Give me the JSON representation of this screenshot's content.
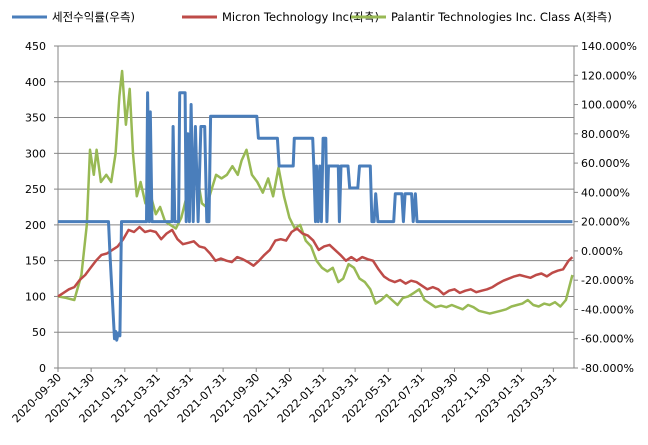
{
  "chart_data": {
    "type": "line",
    "legend_placement": "top",
    "grid": "horizontal",
    "colors": {
      "return_series": "#4a7ebb",
      "micron_series": "#be4b48",
      "palantir_series": "#98b954",
      "gridline": "#868686",
      "axis": "#868686"
    },
    "x_tick_labels": [
      "2020-09-30",
      "2020-11-30",
      "2021-01-31",
      "2021-03-31",
      "2021-05-31",
      "2021-07-31",
      "2021-09-30",
      "2021-11-30",
      "2022-01-31",
      "2022-03-31",
      "2022-05-31",
      "2022-07-31",
      "2022-09-30",
      "2022-11-30",
      "2023-01-31",
      "2023-03-31"
    ],
    "y_left": {
      "ticks": [
        "0",
        "50",
        "100",
        "150",
        "200",
        "250",
        "300",
        "350",
        "400",
        "450"
      ],
      "range": [
        0,
        450
      ]
    },
    "y_right": {
      "ticks": [
        "-80.000%",
        "-60.000%",
        "-40.000%",
        "-20.000%",
        "0.000%",
        "20.000%",
        "40.000%",
        "60.000%",
        "80.000%",
        "100.000%",
        "120.000%",
        "140.000%"
      ],
      "range": [
        -80,
        140
      ]
    },
    "series": [
      {
        "key": "return_series",
        "name": "세전수익률(우측)",
        "axis": "right",
        "points": [
          [
            "2020-09-30",
            20
          ],
          [
            "2021-01-01",
            20
          ],
          [
            "2021-01-04",
            -4
          ],
          [
            "2021-01-12",
            -60
          ],
          [
            "2021-01-14",
            -55
          ],
          [
            "2021-01-16",
            -61
          ],
          [
            "2021-01-19",
            -56
          ],
          [
            "2021-01-22",
            -58
          ],
          [
            "2021-01-25",
            20
          ],
          [
            "2021-03-12",
            20
          ],
          [
            "2021-03-14",
            108
          ],
          [
            "2021-03-17",
            20
          ],
          [
            "2021-03-19",
            95
          ],
          [
            "2021-03-22",
            20
          ],
          [
            "2021-04-28",
            20
          ],
          [
            "2021-04-30",
            85
          ],
          [
            "2021-05-03",
            20
          ],
          [
            "2021-05-10",
            20
          ],
          [
            "2021-05-12",
            108
          ],
          [
            "2021-05-22",
            108
          ],
          [
            "2021-05-24",
            20
          ],
          [
            "2021-05-27",
            80
          ],
          [
            "2021-05-30",
            20
          ],
          [
            "2021-06-02",
            100
          ],
          [
            "2021-06-06",
            20
          ],
          [
            "2021-06-10",
            85
          ],
          [
            "2021-06-15",
            20
          ],
          [
            "2021-06-20",
            85
          ],
          [
            "2021-06-27",
            85
          ],
          [
            "2021-07-01",
            20
          ],
          [
            "2021-07-05",
            20
          ],
          [
            "2021-07-08",
            92
          ],
          [
            "2021-10-01",
            92
          ],
          [
            "2021-10-04",
            77
          ],
          [
            "2021-11-08",
            77
          ],
          [
            "2021-11-11",
            58
          ],
          [
            "2021-12-07",
            58
          ],
          [
            "2021-12-09",
            77
          ],
          [
            "2022-01-12",
            77
          ],
          [
            "2022-01-14",
            58
          ],
          [
            "2022-01-17",
            20
          ],
          [
            "2022-01-19",
            58
          ],
          [
            "2022-01-22",
            20
          ],
          [
            "2022-01-25",
            58
          ],
          [
            "2022-01-28",
            20
          ],
          [
            "2022-01-31",
            77
          ],
          [
            "2022-02-05",
            77
          ],
          [
            "2022-02-07",
            20
          ],
          [
            "2022-02-10",
            58
          ],
          [
            "2022-02-28",
            58
          ],
          [
            "2022-03-02",
            20
          ],
          [
            "2022-03-05",
            58
          ],
          [
            "2022-03-18",
            58
          ],
          [
            "2022-03-21",
            43
          ],
          [
            "2022-04-05",
            43
          ],
          [
            "2022-04-08",
            58
          ],
          [
            "2022-04-28",
            58
          ],
          [
            "2022-05-01",
            20
          ],
          [
            "2022-05-05",
            20
          ],
          [
            "2022-05-08",
            39
          ],
          [
            "2022-05-12",
            20
          ],
          [
            "2022-06-10",
            20
          ],
          [
            "2022-06-13",
            39
          ],
          [
            "2022-06-25",
            39
          ],
          [
            "2022-06-28",
            20
          ],
          [
            "2022-07-01",
            39
          ],
          [
            "2022-07-13",
            39
          ],
          [
            "2022-07-16",
            20
          ],
          [
            "2022-07-20",
            39
          ],
          [
            "2022-07-23",
            20
          ],
          [
            "2023-05-05",
            20
          ]
        ]
      },
      {
        "key": "micron_series",
        "name": "Micron Technology Inc(좌측)",
        "axis": "left",
        "points": [
          [
            "2020-09-30",
            100
          ],
          [
            "2020-10-10",
            105
          ],
          [
            "2020-10-20",
            110
          ],
          [
            "2020-10-30",
            113
          ],
          [
            "2020-11-09",
            123
          ],
          [
            "2020-11-19",
            130
          ],
          [
            "2020-11-29",
            140
          ],
          [
            "2020-12-09",
            150
          ],
          [
            "2020-12-19",
            158
          ],
          [
            "2020-12-29",
            160
          ],
          [
            "2021-01-08",
            165
          ],
          [
            "2021-01-18",
            170
          ],
          [
            "2021-01-28",
            180
          ],
          [
            "2021-02-07",
            193
          ],
          [
            "2021-02-17",
            190
          ],
          [
            "2021-02-27",
            197
          ],
          [
            "2021-03-09",
            190
          ],
          [
            "2021-03-19",
            192
          ],
          [
            "2021-03-29",
            190
          ],
          [
            "2021-04-08",
            180
          ],
          [
            "2021-04-18",
            188
          ],
          [
            "2021-04-28",
            193
          ],
          [
            "2021-05-08",
            180
          ],
          [
            "2021-05-18",
            173
          ],
          [
            "2021-05-28",
            175
          ],
          [
            "2021-06-07",
            177
          ],
          [
            "2021-06-17",
            170
          ],
          [
            "2021-06-27",
            168
          ],
          [
            "2021-07-07",
            160
          ],
          [
            "2021-07-17",
            150
          ],
          [
            "2021-07-27",
            153
          ],
          [
            "2021-08-06",
            150
          ],
          [
            "2021-08-16",
            148
          ],
          [
            "2021-08-26",
            155
          ],
          [
            "2021-09-05",
            152
          ],
          [
            "2021-09-15",
            148
          ],
          [
            "2021-09-25",
            143
          ],
          [
            "2021-10-05",
            150
          ],
          [
            "2021-10-15",
            158
          ],
          [
            "2021-10-25",
            165
          ],
          [
            "2021-11-04",
            178
          ],
          [
            "2021-11-14",
            180
          ],
          [
            "2021-11-24",
            178
          ],
          [
            "2021-12-04",
            190
          ],
          [
            "2021-12-14",
            195
          ],
          [
            "2021-12-24",
            188
          ],
          [
            "2022-01-03",
            185
          ],
          [
            "2022-01-13",
            178
          ],
          [
            "2022-01-23",
            165
          ],
          [
            "2022-02-02",
            170
          ],
          [
            "2022-02-12",
            172
          ],
          [
            "2022-02-22",
            165
          ],
          [
            "2022-03-04",
            158
          ],
          [
            "2022-03-14",
            150
          ],
          [
            "2022-03-24",
            155
          ],
          [
            "2022-04-03",
            150
          ],
          [
            "2022-04-13",
            155
          ],
          [
            "2022-04-23",
            152
          ],
          [
            "2022-05-03",
            150
          ],
          [
            "2022-05-13",
            138
          ],
          [
            "2022-05-23",
            128
          ],
          [
            "2022-06-02",
            123
          ],
          [
            "2022-06-12",
            120
          ],
          [
            "2022-06-22",
            123
          ],
          [
            "2022-07-02",
            118
          ],
          [
            "2022-07-12",
            122
          ],
          [
            "2022-07-22",
            120
          ],
          [
            "2022-08-01",
            115
          ],
          [
            "2022-08-11",
            110
          ],
          [
            "2022-08-21",
            113
          ],
          [
            "2022-08-31",
            110
          ],
          [
            "2022-09-10",
            103
          ],
          [
            "2022-09-20",
            108
          ],
          [
            "2022-09-30",
            110
          ],
          [
            "2022-10-10",
            105
          ],
          [
            "2022-10-20",
            108
          ],
          [
            "2022-10-30",
            110
          ],
          [
            "2022-11-09",
            106
          ],
          [
            "2022-11-19",
            108
          ],
          [
            "2022-11-29",
            110
          ],
          [
            "2022-12-09",
            113
          ],
          [
            "2022-12-19",
            118
          ],
          [
            "2022-12-29",
            122
          ],
          [
            "2023-01-08",
            125
          ],
          [
            "2023-01-18",
            128
          ],
          [
            "2023-01-28",
            130
          ],
          [
            "2023-02-07",
            128
          ],
          [
            "2023-02-17",
            126
          ],
          [
            "2023-02-27",
            130
          ],
          [
            "2023-03-09",
            132
          ],
          [
            "2023-03-19",
            128
          ],
          [
            "2023-03-29",
            133
          ],
          [
            "2023-04-08",
            136
          ],
          [
            "2023-04-18",
            138
          ],
          [
            "2023-04-28",
            150
          ],
          [
            "2023-05-05",
            155
          ]
        ]
      },
      {
        "key": "palantir_series",
        "name": "Palantir Technologies Inc. Class A(좌측)",
        "axis": "left",
        "points": [
          [
            "2020-09-30",
            100
          ],
          [
            "2020-10-15",
            98
          ],
          [
            "2020-10-30",
            95
          ],
          [
            "2020-11-12",
            130
          ],
          [
            "2020-11-22",
            200
          ],
          [
            "2020-11-28",
            305
          ],
          [
            "2020-12-05",
            270
          ],
          [
            "2020-12-10",
            305
          ],
          [
            "2020-12-18",
            260
          ],
          [
            "2020-12-28",
            270
          ],
          [
            "2021-01-06",
            260
          ],
          [
            "2021-01-14",
            300
          ],
          [
            "2021-01-21",
            380
          ],
          [
            "2021-01-26",
            415
          ],
          [
            "2021-02-02",
            340
          ],
          [
            "2021-02-09",
            390
          ],
          [
            "2021-02-15",
            300
          ],
          [
            "2021-02-22",
            240
          ],
          [
            "2021-03-01",
            260
          ],
          [
            "2021-03-10",
            230
          ],
          [
            "2021-03-20",
            240
          ],
          [
            "2021-03-29",
            215
          ],
          [
            "2021-04-06",
            225
          ],
          [
            "2021-04-15",
            205
          ],
          [
            "2021-04-25",
            200
          ],
          [
            "2021-05-05",
            195
          ],
          [
            "2021-05-15",
            210
          ],
          [
            "2021-05-25",
            240
          ],
          [
            "2021-06-05",
            270
          ],
          [
            "2021-06-14",
            265
          ],
          [
            "2021-06-22",
            230
          ],
          [
            "2021-06-30",
            225
          ],
          [
            "2021-07-08",
            245
          ],
          [
            "2021-07-18",
            270
          ],
          [
            "2021-07-28",
            265
          ],
          [
            "2021-08-07",
            270
          ],
          [
            "2021-08-17",
            282
          ],
          [
            "2021-08-27",
            270
          ],
          [
            "2021-09-03",
            290
          ],
          [
            "2021-09-12",
            305
          ],
          [
            "2021-09-22",
            270
          ],
          [
            "2021-10-02",
            260
          ],
          [
            "2021-10-12",
            245
          ],
          [
            "2021-10-22",
            265
          ],
          [
            "2021-10-31",
            240
          ],
          [
            "2021-11-10",
            280
          ],
          [
            "2021-11-20",
            240
          ],
          [
            "2021-11-30",
            210
          ],
          [
            "2021-12-10",
            195
          ],
          [
            "2021-12-20",
            200
          ],
          [
            "2021-12-30",
            178
          ],
          [
            "2022-01-09",
            170
          ],
          [
            "2022-01-19",
            150
          ],
          [
            "2022-01-29",
            140
          ],
          [
            "2022-02-08",
            135
          ],
          [
            "2022-02-18",
            140
          ],
          [
            "2022-02-28",
            120
          ],
          [
            "2022-03-09",
            125
          ],
          [
            "2022-03-19",
            145
          ],
          [
            "2022-03-29",
            140
          ],
          [
            "2022-04-08",
            125
          ],
          [
            "2022-04-18",
            120
          ],
          [
            "2022-04-28",
            110
          ],
          [
            "2022-05-08",
            90
          ],
          [
            "2022-05-18",
            95
          ],
          [
            "2022-05-28",
            102
          ],
          [
            "2022-06-07",
            95
          ],
          [
            "2022-06-17",
            88
          ],
          [
            "2022-06-27",
            98
          ],
          [
            "2022-07-07",
            100
          ],
          [
            "2022-07-17",
            105
          ],
          [
            "2022-07-27",
            110
          ],
          [
            "2022-08-06",
            95
          ],
          [
            "2022-08-16",
            90
          ],
          [
            "2022-08-26",
            85
          ],
          [
            "2022-09-05",
            87
          ],
          [
            "2022-09-15",
            85
          ],
          [
            "2022-09-25",
            88
          ],
          [
            "2022-10-05",
            85
          ],
          [
            "2022-10-15",
            82
          ],
          [
            "2022-10-25",
            88
          ],
          [
            "2022-11-04",
            85
          ],
          [
            "2022-11-14",
            80
          ],
          [
            "2022-11-24",
            78
          ],
          [
            "2022-12-04",
            76
          ],
          [
            "2022-12-14",
            78
          ],
          [
            "2022-12-24",
            80
          ],
          [
            "2023-01-03",
            82
          ],
          [
            "2023-01-13",
            86
          ],
          [
            "2023-01-23",
            88
          ],
          [
            "2023-02-02",
            90
          ],
          [
            "2023-02-12",
            95
          ],
          [
            "2023-02-22",
            88
          ],
          [
            "2023-03-04",
            86
          ],
          [
            "2023-03-14",
            90
          ],
          [
            "2023-03-24",
            88
          ],
          [
            "2023-04-03",
            92
          ],
          [
            "2023-04-13",
            86
          ],
          [
            "2023-04-23",
            95
          ],
          [
            "2023-05-05",
            130
          ]
        ]
      }
    ]
  }
}
